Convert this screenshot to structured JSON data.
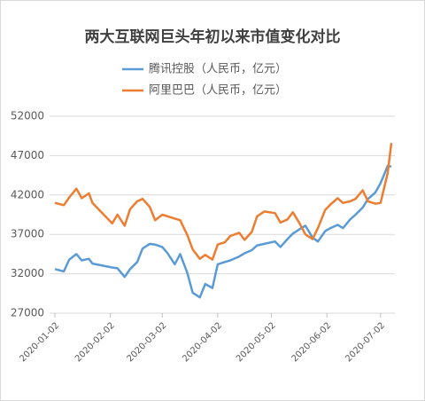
{
  "chart_data": {
    "type": "line",
    "title": "两大互联网巨头年初以来市值变化对比",
    "x": [
      "2020-01-02",
      "2020-01-07",
      "2020-01-10",
      "2020-01-14",
      "2020-01-17",
      "2020-01-21",
      "2020-01-23",
      "2020-02-03",
      "2020-02-06",
      "2020-02-10",
      "2020-02-13",
      "2020-02-17",
      "2020-02-20",
      "2020-02-24",
      "2020-02-27",
      "2020-03-02",
      "2020-03-05",
      "2020-03-09",
      "2020-03-12",
      "2020-03-16",
      "2020-03-19",
      "2020-03-23",
      "2020-03-26",
      "2020-03-30",
      "2020-04-02",
      "2020-04-06",
      "2020-04-09",
      "2020-04-14",
      "2020-04-17",
      "2020-04-21",
      "2020-04-24",
      "2020-04-28",
      "2020-05-04",
      "2020-05-07",
      "2020-05-11",
      "2020-05-14",
      "2020-05-18",
      "2020-05-21",
      "2020-05-25",
      "2020-05-28",
      "2020-06-01",
      "2020-06-04",
      "2020-06-08",
      "2020-06-11",
      "2020-06-15",
      "2020-06-18",
      "2020-06-22",
      "2020-06-25",
      "2020-06-29",
      "2020-07-02",
      "2020-07-06",
      "2020-07-08"
    ],
    "series": [
      {
        "name": "腾讯控股（人民币，亿元）",
        "color": "#5b9bd5",
        "values": [
          32600,
          32300,
          33800,
          34500,
          33700,
          33900,
          33300,
          32800,
          32700,
          31600,
          32600,
          33500,
          35200,
          35800,
          35700,
          35400,
          34600,
          33200,
          34500,
          32100,
          29600,
          29000,
          30700,
          30200,
          33200,
          33500,
          33700,
          34200,
          34600,
          35000,
          35600,
          35800,
          36100,
          35400,
          36400,
          37100,
          37700,
          38100,
          36600,
          36100,
          37400,
          37800,
          38200,
          37800,
          38900,
          39500,
          40400,
          41500,
          42300,
          43500,
          45700,
          45600
        ]
      },
      {
        "name": "阿里巴巴（人民币，亿元）",
        "color": "#ed7d31",
        "values": [
          41000,
          40700,
          41700,
          42800,
          41600,
          42200,
          41000,
          38400,
          39500,
          38100,
          40200,
          41200,
          41500,
          40500,
          38800,
          39500,
          39300,
          39000,
          38800,
          36900,
          35100,
          33900,
          34400,
          33800,
          35700,
          36000,
          36800,
          37200,
          36300,
          37300,
          39300,
          39900,
          39700,
          38500,
          38900,
          39800,
          38300,
          37000,
          36400,
          37800,
          40100,
          40800,
          41600,
          41000,
          41200,
          41500,
          42600,
          41200,
          40900,
          41000,
          44800,
          48600
        ]
      }
    ],
    "xlim": [
      "2020-01-02",
      "2020-07-10"
    ],
    "xticks": [
      "2020-01-02",
      "2020-02-02",
      "2020-03-02",
      "2020-04-02",
      "2020-05-02",
      "2020-06-02",
      "2020-07-02"
    ],
    "ylim": [
      27000,
      52000
    ],
    "yticks": [
      27000,
      32000,
      37000,
      42000,
      47000,
      52000
    ],
    "grid": true
  }
}
